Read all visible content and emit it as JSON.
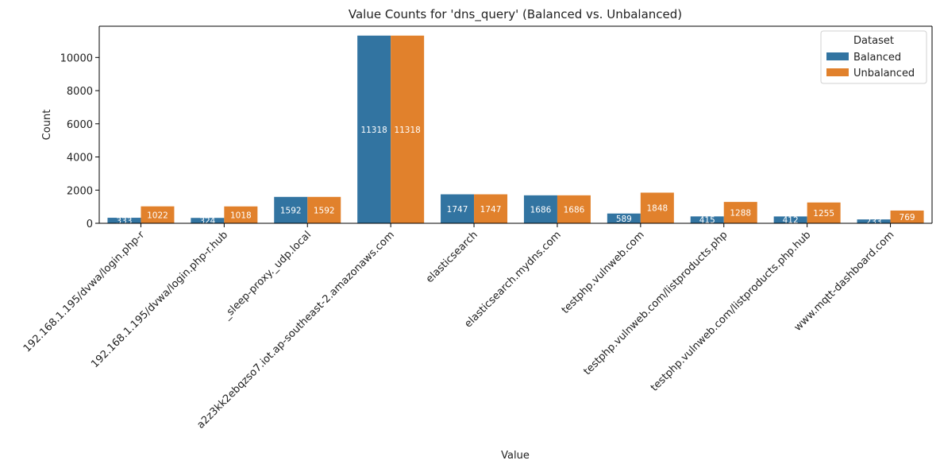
{
  "chart_data": {
    "type": "bar",
    "title": "Value Counts for 'dns_query' (Balanced vs. Unbalanced)",
    "xlabel": "Value",
    "ylabel": "Count",
    "ylim": [
      0,
      11884
    ],
    "yticks": [
      0,
      2000,
      4000,
      6000,
      8000,
      10000
    ],
    "grid": false,
    "legend": {
      "title": "Dataset",
      "placement": "top-right"
    },
    "categories": [
      "192.168.1.195/dvwa/login.php-r",
      "192.168.1.195/dvwa/login.php-r.hub",
      "_sleep-proxy._udp.local",
      "a2z3kk2ebqzso7.iot.ap-southeast-2.amazonaws.com",
      "elasticsearch",
      "elasticsearch.mydns.com",
      "testphp.vulnweb.com",
      "testphp.vulnweb.com/listproducts.php",
      "testphp.vulnweb.com/listproducts.php.hub",
      "www.mqtt-dashboard.com"
    ],
    "series": [
      {
        "name": "Balanced",
        "color": "#3274a1",
        "values": [
          333,
          324,
          1592,
          11318,
          1747,
          1686,
          589,
          415,
          412,
          233
        ]
      },
      {
        "name": "Unbalanced",
        "color": "#e1812c",
        "values": [
          1022,
          1018,
          1592,
          11318,
          1747,
          1686,
          1848,
          1288,
          1255,
          769
        ]
      }
    ]
  }
}
